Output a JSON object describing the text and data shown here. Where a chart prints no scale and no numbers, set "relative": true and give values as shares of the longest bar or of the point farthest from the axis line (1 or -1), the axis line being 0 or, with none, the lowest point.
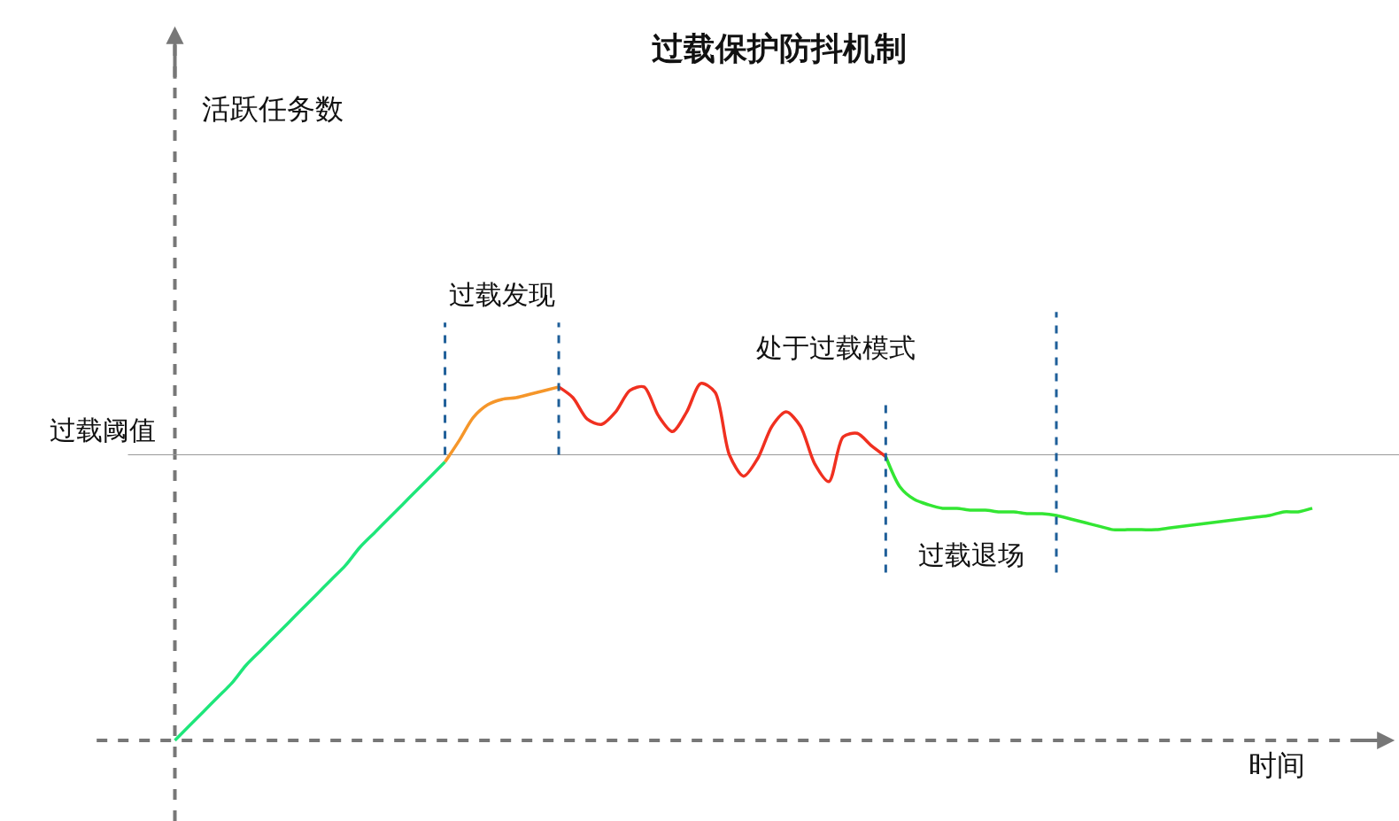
{
  "chart_data": {
    "type": "line",
    "relative": true,
    "title": "过载保护防抖机制",
    "xlabel": "时间",
    "categories": [
      null,
      null,
      null,
      null,
      null,
      null,
      null,
      null,
      null,
      null,
      null,
      null,
      null,
      null,
      null,
      null,
      null,
      null,
      null,
      null,
      null,
      null,
      null,
      null,
      null,
      null,
      null,
      null,
      null,
      null,
      null,
      null,
      null,
      null,
      null,
      null,
      null,
      null,
      null,
      null,
      null,
      null,
      null,
      null,
      null,
      null,
      null,
      null,
      null,
      null,
      null,
      null,
      null,
      null,
      null,
      null,
      null,
      null,
      null,
      null,
      null,
      null,
      null,
      null,
      null,
      null,
      null,
      null,
      null,
      null,
      null,
      null,
      null,
      null,
      null,
      null,
      null,
      null,
      null,
      null,
      null
    ],
    "series": [
      {
        "color": "#1ee67a",
        "values": [
          0,
          0.04,
          0.08,
          0.12,
          0.16,
          0.21,
          0.25,
          0.29,
          0.33,
          0.37,
          0.41,
          0.45,
          0.49,
          0.54,
          0.58,
          0.62,
          0.66,
          0.7,
          0.74,
          0.78,
          null,
          null,
          null,
          null,
          null,
          null,
          null,
          null,
          null,
          null,
          null,
          null,
          null,
          null,
          null,
          null,
          null,
          null,
          null,
          null,
          null,
          null,
          null,
          null,
          null,
          null,
          null,
          null,
          null,
          null,
          null,
          null,
          null,
          null,
          null,
          null,
          null,
          null,
          null,
          null,
          null,
          null,
          null,
          null,
          null,
          null,
          null,
          null,
          null,
          null,
          null,
          null,
          null,
          null,
          null,
          null,
          null,
          null,
          null,
          null,
          null
        ]
      },
      {
        "color": "#f5962a",
        "values": [
          null,
          null,
          null,
          null,
          null,
          null,
          null,
          null,
          null,
          null,
          null,
          null,
          null,
          null,
          null,
          null,
          null,
          null,
          null,
          0.78,
          0.84,
          0.905,
          0.94,
          0.955,
          0.96,
          0.97,
          0.98,
          0.99,
          null,
          null,
          null,
          null,
          null,
          null,
          null,
          null,
          null,
          null,
          null,
          null,
          null,
          null,
          null,
          null,
          null,
          null,
          null,
          null,
          null,
          null,
          null,
          null,
          null,
          null,
          null,
          null,
          null,
          null,
          null,
          null,
          null,
          null,
          null,
          null,
          null,
          null,
          null,
          null,
          null,
          null,
          null,
          null,
          null,
          null,
          null,
          null,
          null,
          null,
          null,
          null,
          null
        ]
      },
      {
        "color": "#f03020",
        "values": [
          null,
          null,
          null,
          null,
          null,
          null,
          null,
          null,
          null,
          null,
          null,
          null,
          null,
          null,
          null,
          null,
          null,
          null,
          null,
          null,
          null,
          null,
          null,
          null,
          null,
          null,
          null,
          0.99,
          0.96,
          0.9,
          0.885,
          0.92,
          0.98,
          0.99,
          0.91,
          0.865,
          0.92,
          1,
          0.975,
          0.8,
          0.74,
          0.79,
          0.88,
          0.92,
          0.88,
          0.775,
          0.725,
          0.85,
          0.86,
          0.825,
          0.795,
          null,
          null,
          null,
          null,
          null,
          null,
          null,
          null,
          null,
          null,
          null,
          null,
          null,
          null,
          null,
          null,
          null,
          null,
          null,
          null,
          null,
          null,
          null,
          null,
          null,
          null,
          null,
          null,
          null,
          null
        ]
      },
      {
        "color": "#33e633",
        "values": [
          null,
          null,
          null,
          null,
          null,
          null,
          null,
          null,
          null,
          null,
          null,
          null,
          null,
          null,
          null,
          null,
          null,
          null,
          null,
          null,
          null,
          null,
          null,
          null,
          null,
          null,
          null,
          null,
          null,
          null,
          null,
          null,
          null,
          null,
          null,
          null,
          null,
          null,
          null,
          null,
          null,
          null,
          null,
          null,
          null,
          null,
          null,
          null,
          null,
          null,
          0.795,
          0.71,
          0.675,
          0.66,
          0.65,
          0.65,
          0.645,
          0.645,
          0.64,
          0.64,
          0.635,
          0.635,
          0.63,
          0.62,
          0.61,
          0.6,
          0.59,
          0.59,
          0.59,
          0.59,
          0.595,
          0.6,
          0.605,
          0.61,
          0.615,
          0.62,
          0.625,
          0.63,
          0.64,
          0.64,
          0.65
        ]
      }
    ],
    "ref_lines": [
      {
        "axis": "y",
        "value": 0.8,
        "label": "过载阈值",
        "color": "#999999"
      }
    ],
    "annotations": [
      "活跃任务数",
      "过载发现",
      "处于过载模式",
      "过载退场"
    ],
    "grid": false,
    "marker": "none",
    "line_style": "solid"
  }
}
